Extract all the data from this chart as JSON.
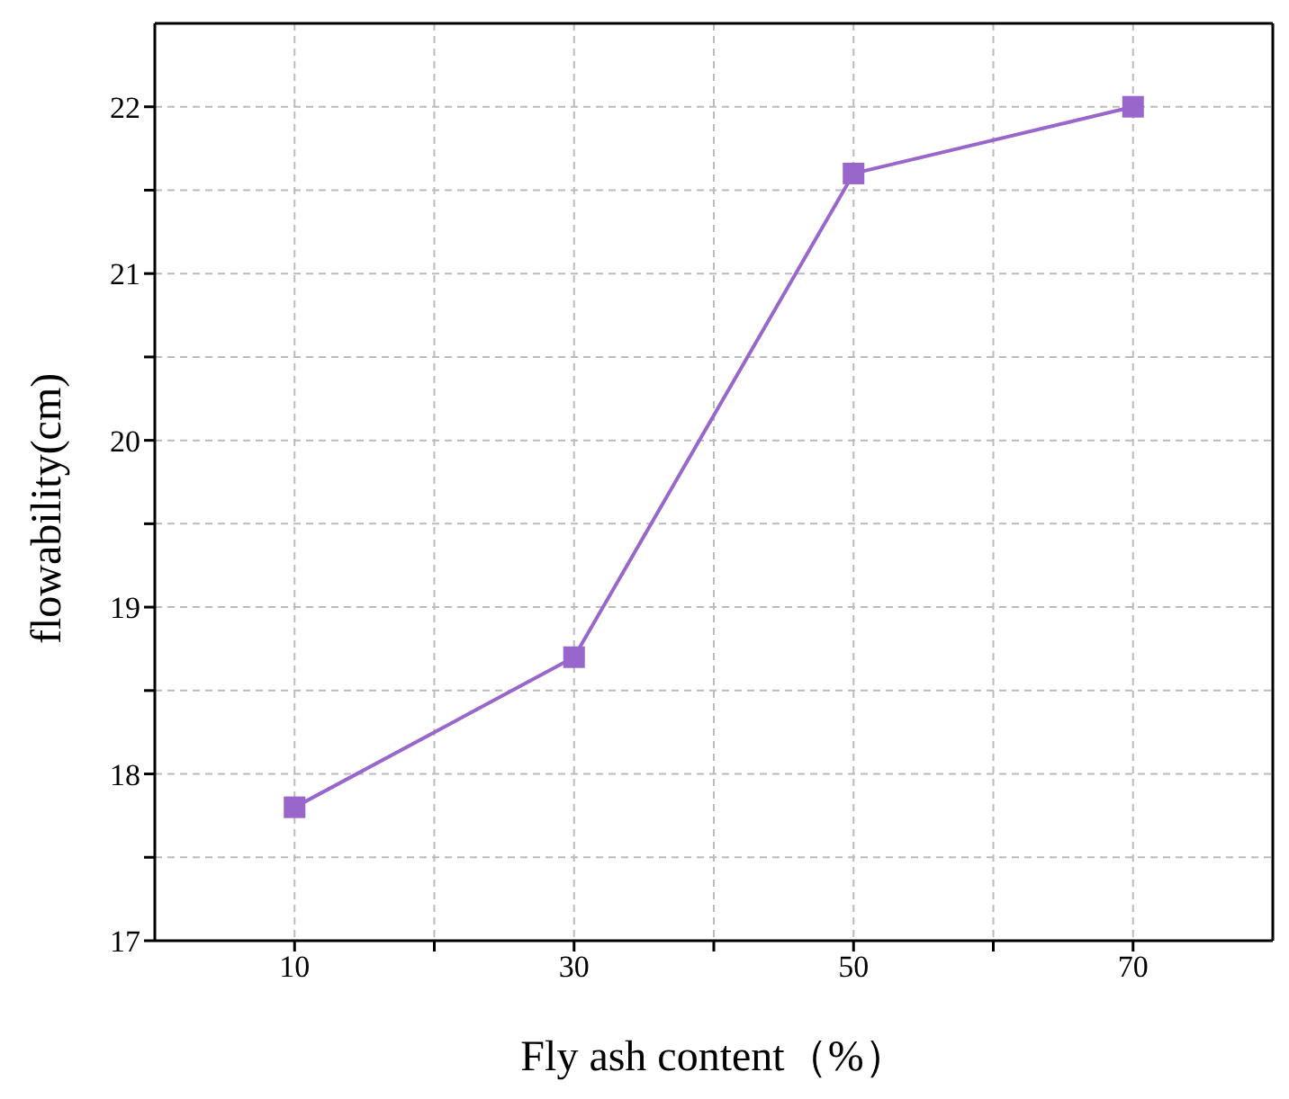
{
  "chart_data": {
    "type": "line",
    "xlabel": "Fly ash content（%）",
    "ylabel": "flowability(cm)",
    "x": [
      10,
      30,
      50,
      70
    ],
    "series": [
      {
        "color": "#9966cc",
        "values": [
          17.8,
          18.7,
          21.6,
          22.0
        ]
      }
    ],
    "xlim": [
      0,
      80
    ],
    "xticks": [
      10,
      {
        "value": 20,
        "label": null
      },
      30,
      {
        "value": 40,
        "label": null
      },
      50,
      {
        "value": 60,
        "label": null
      },
      70
    ],
    "ylim": [
      17,
      22.5
    ],
    "yticks": [
      17,
      {
        "value": 17.5,
        "label": null
      },
      18,
      {
        "value": 18.5,
        "label": null
      },
      19,
      {
        "value": 19.5,
        "label": null
      },
      20,
      {
        "value": 20.5,
        "label": null
      },
      21,
      {
        "value": 21.5,
        "label": null
      },
      22
    ],
    "grid": true,
    "marker": "square",
    "line_style": "solid",
    "legend": false
  }
}
